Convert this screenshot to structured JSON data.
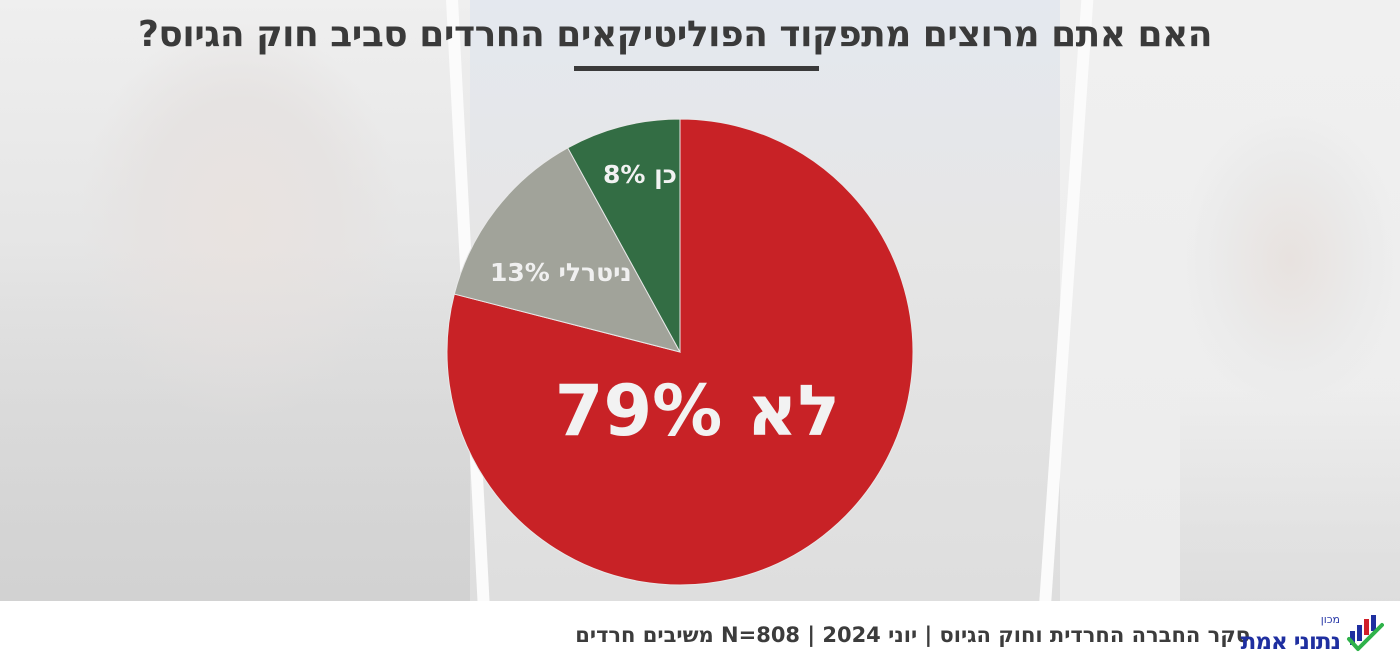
{
  "title": {
    "text": "האם אתם מרוצים מתפקוד הפוליטיקאים החרדים סביב חוק הגיוס?",
    "underlined_word": "הפוליטיקאים"
  },
  "chart_data": {
    "type": "pie",
    "title": "האם אתם מרוצים מתפקוד הפוליטיקאים החרדים סביב חוק הגיוס?",
    "categories": [
      "לא",
      "ניטרלי",
      "כן"
    ],
    "values": [
      79,
      13,
      8
    ],
    "unit": "%",
    "colors": [
      "#c82226",
      "#a1a39a",
      "#336d44"
    ],
    "start_angle": "12 o'clock",
    "direction": "clockwise",
    "legend": "none (labels inside slices)",
    "labels": [
      "לא 79%",
      "ניטרלי 13%",
      "כן 8%"
    ]
  },
  "labels": {
    "no": "לא 79%",
    "neutral": "ניטרלי 13%",
    "yes": "כן 8%"
  },
  "footer": {
    "text": "סקר החברה החרדית וחוק הגיוס | יוני 2024 | N=808 משיבים חרדים",
    "survey_name": "סקר החברה החרדית וחוק הגיוס",
    "date": "יוני 2024",
    "sample": "N=808 משיבים חרדים"
  },
  "logo": {
    "prefix": "מכון",
    "name": "נתוני אמת",
    "colors": {
      "text": "#1f2fa0",
      "bar_blue": "#1f2fa0",
      "bar_red": "#d0202a",
      "check": "#2fb24a"
    }
  }
}
